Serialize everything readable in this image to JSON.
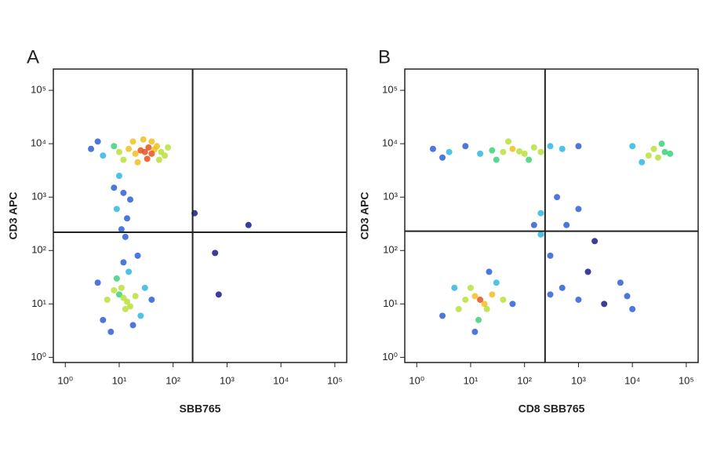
{
  "chart_data": [
    {
      "type": "scatter",
      "panel_label": "A",
      "x_label": "SBB765",
      "y_label": "CD3 APC",
      "xscale": "log",
      "yscale": "log",
      "xlim": [
        0.6,
        166000
      ],
      "ylim": [
        0.8,
        250000
      ],
      "xticks": [
        {
          "value": 1,
          "label": "10⁰"
        },
        {
          "value": 10,
          "label": "10¹"
        },
        {
          "value": 100,
          "label": "10²"
        },
        {
          "value": 1000,
          "label": "10³"
        },
        {
          "value": 10000,
          "label": "10⁴"
        },
        {
          "value": 100000,
          "label": "10⁵"
        }
      ],
      "yticks": [
        {
          "value": 1,
          "label": "10⁰"
        },
        {
          "value": 10,
          "label": "10¹"
        },
        {
          "value": 100,
          "label": "10²"
        },
        {
          "value": 1000,
          "label": "10³"
        },
        {
          "value": 10000,
          "label": "10⁴"
        },
        {
          "value": 100000,
          "label": "10⁵"
        }
      ],
      "quadrant": {
        "x": 230,
        "y": 220
      },
      "colormap": [
        "#1a1a8c",
        "#2f5fd8",
        "#2fb8e0",
        "#3cd27a",
        "#b8e03a",
        "#f0c020",
        "#e8501c"
      ],
      "series": [
        {
          "x": [
            3,
            5,
            8,
            10,
            15,
            20,
            25,
            30,
            35,
            40,
            45,
            50,
            60,
            70,
            18,
            28,
            40,
            12,
            22,
            33,
            4,
            80,
            55,
            10,
            12,
            9,
            14,
            11,
            13,
            8,
            16,
            12,
            10,
            14,
            8,
            16,
            11,
            13,
            6,
            20,
            9,
            15,
            12,
            5,
            25,
            30,
            7,
            18,
            40,
            4,
            22,
            600,
            2500,
            700,
            250
          ],
          "y": [
            8000,
            6000,
            9000,
            7000,
            8000,
            6500,
            7500,
            7000,
            8500,
            6500,
            7800,
            9000,
            7000,
            6000,
            11000,
            12000,
            11000,
            5000,
            4500,
            5200,
            11000,
            8500,
            5000,
            2500,
            1200,
            600,
            400,
            250,
            180,
            1500,
            900,
            13,
            15,
            11,
            18,
            9,
            20,
            8,
            12,
            14,
            30,
            40,
            60,
            5,
            6,
            20,
            3,
            4,
            12,
            25,
            80,
            90,
            300,
            15,
            500
          ]
        }
      ]
    },
    {
      "type": "scatter",
      "panel_label": "B",
      "x_label": "CD8 SBB765",
      "y_label": "CD3 APC",
      "xscale": "log",
      "yscale": "log",
      "xlim": [
        0.6,
        166000
      ],
      "ylim": [
        0.8,
        250000
      ],
      "xticks": [
        {
          "value": 1,
          "label": "10⁰"
        },
        {
          "value": 10,
          "label": "10¹"
        },
        {
          "value": 100,
          "label": "10²"
        },
        {
          "value": 1000,
          "label": "10³"
        },
        {
          "value": 10000,
          "label": "10⁴"
        },
        {
          "value": 100000,
          "label": "10⁵"
        }
      ],
      "yticks": [
        {
          "value": 1,
          "label": "10⁰"
        },
        {
          "value": 10,
          "label": "10¹"
        },
        {
          "value": 100,
          "label": "10²"
        },
        {
          "value": 1000,
          "label": "10³"
        },
        {
          "value": 10000,
          "label": "10⁴"
        },
        {
          "value": 100000,
          "label": "10⁵"
        }
      ],
      "quadrant": {
        "x": 240,
        "y": 230
      },
      "colormap": [
        "#1a1a8c",
        "#2f5fd8",
        "#2fb8e0",
        "#3cd27a",
        "#b8e03a",
        "#f0c020",
        "#e8501c"
      ],
      "series": [
        {
          "x": [
            2,
            4,
            8,
            15,
            25,
            40,
            60,
            80,
            100,
            150,
            200,
            300,
            50,
            30,
            120,
            500,
            1000,
            3,
            20000,
            30000,
            25000,
            40000,
            15000,
            35000,
            50000,
            10000,
            15,
            12,
            18,
            10,
            20,
            8,
            25,
            14,
            30,
            6,
            40,
            5,
            22,
            3,
            12,
            60,
            300,
            500,
            1000,
            3000,
            8000,
            300,
            600,
            1000,
            2000,
            400,
            200,
            6000,
            10000,
            1500,
            150,
            200
          ],
          "y": [
            8000,
            7000,
            9000,
            6500,
            7500,
            7000,
            8000,
            7200,
            6500,
            8500,
            7000,
            9000,
            11000,
            5000,
            5000,
            8000,
            9000,
            5500,
            6000,
            5500,
            8000,
            7000,
            4500,
            10000,
            6500,
            9000,
            12,
            14,
            10,
            20,
            8,
            12,
            15,
            5,
            25,
            8,
            12,
            20,
            40,
            6,
            3,
            10,
            15,
            20,
            12,
            10,
            14,
            80,
            300,
            600,
            150,
            1000,
            500,
            25,
            8,
            40,
            300,
            200
          ]
        }
      ]
    }
  ]
}
